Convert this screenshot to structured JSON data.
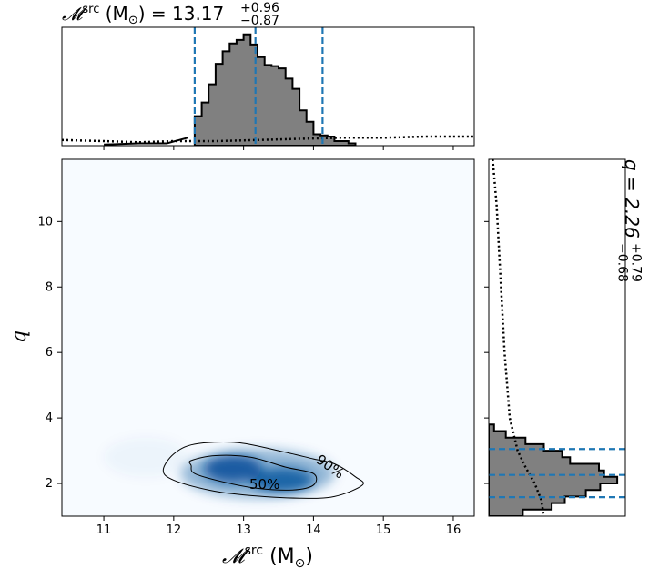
{
  "chart_data": {
    "type": "corner",
    "top_title": {
      "prefix": "𝓜",
      "sup": "src",
      "unit": " (M",
      "sun": "⊙",
      "close": ") = 13.17",
      "plus": "+0.96",
      "minus": "−0.87"
    },
    "right_title": {
      "prefix": "q = 2.26",
      "plus": "+0.79",
      "minus": "−0.68"
    },
    "xlabel": {
      "prefix": "𝓜",
      "sup": "src",
      "unit": " (M",
      "sun": "⊙",
      "close": ")"
    },
    "ylabel": "q",
    "xlim": [
      10.4,
      16.3
    ],
    "ylim": [
      1.0,
      11.9
    ],
    "xticks": [
      11,
      12,
      13,
      14,
      15,
      16
    ],
    "xtick_labels": [
      "11",
      "12",
      "13",
      "14",
      "15",
      "16"
    ],
    "yticks": [
      2,
      4,
      6,
      8,
      10
    ],
    "ytick_labels": [
      "2",
      "4",
      "6",
      "8",
      "10"
    ],
    "contour_labels": [
      "90%",
      "50%"
    ],
    "mchirp_quantiles": [
      12.3,
      13.17,
      14.13
    ],
    "q_quantiles": [
      1.58,
      2.26,
      3.05
    ],
    "mchirp_hist": {
      "edges": [
        12.3,
        12.4,
        12.5,
        12.6,
        12.7,
        12.8,
        12.9,
        13.0,
        13.1,
        13.2,
        13.3,
        13.4,
        13.5,
        13.6,
        13.7,
        13.8,
        13.9,
        14.0,
        14.1,
        14.2,
        14.3,
        14.4,
        14.5,
        14.6
      ],
      "counts": [
        0.26,
        0.38,
        0.54,
        0.72,
        0.83,
        0.9,
        0.93,
        0.98,
        0.89,
        0.78,
        0.71,
        0.7,
        0.68,
        0.59,
        0.5,
        0.31,
        0.21,
        0.1,
        0.09,
        0.08,
        0.04,
        0.04,
        0.02
      ]
    },
    "mchirp_low_tail": [
      {
        "x": 11.0,
        "y": 0.01
      },
      {
        "x": 11.5,
        "y": 0.02
      },
      {
        "x": 11.9,
        "y": 0.02
      },
      {
        "x": 12.2,
        "y": 0.07
      }
    ],
    "mchirp_prior": [
      {
        "x": 10.4,
        "y": 0.05
      },
      {
        "x": 11.0,
        "y": 0.04
      },
      {
        "x": 11.5,
        "y": 0.03
      },
      {
        "x": 12.0,
        "y": 0.04
      },
      {
        "x": 12.6,
        "y": 0.04
      },
      {
        "x": 13.2,
        "y": 0.05
      },
      {
        "x": 13.8,
        "y": 0.06
      },
      {
        "x": 14.4,
        "y": 0.07
      },
      {
        "x": 15.0,
        "y": 0.07
      },
      {
        "x": 15.6,
        "y": 0.08
      },
      {
        "x": 16.3,
        "y": 0.08
      }
    ],
    "q_hist": {
      "edges": [
        1.0,
        1.2,
        1.4,
        1.6,
        1.8,
        2.0,
        2.2,
        2.4,
        2.6,
        2.8,
        3.0,
        3.2,
        3.4,
        3.6,
        3.8
      ],
      "counts": [
        0.26,
        0.48,
        0.58,
        0.74,
        0.85,
        0.98,
        0.88,
        0.84,
        0.62,
        0.56,
        0.42,
        0.28,
        0.13,
        0.04
      ]
    },
    "q_prior": [
      {
        "q": 11.9,
        "v": 0.03
      },
      {
        "q": 10.5,
        "v": 0.06
      },
      {
        "q": 9.0,
        "v": 0.08
      },
      {
        "q": 7.5,
        "v": 0.1
      },
      {
        "q": 6.0,
        "v": 0.12
      },
      {
        "q": 5.0,
        "v": 0.14
      },
      {
        "q": 4.0,
        "v": 0.16
      },
      {
        "q": 3.0,
        "v": 0.22
      },
      {
        "q": 2.5,
        "v": 0.28
      },
      {
        "q": 2.0,
        "v": 0.35
      },
      {
        "q": 1.5,
        "v": 0.4
      },
      {
        "q": 1.0,
        "v": 0.42
      }
    ],
    "density_blobs": [
      {
        "x": 12.85,
        "y": 2.45,
        "rx": 0.42,
        "ry": 0.42,
        "weight": 1.0
      },
      {
        "x": 13.55,
        "y": 2.1,
        "rx": 0.45,
        "ry": 0.38,
        "weight": 0.9
      },
      {
        "x": 13.2,
        "y": 2.3,
        "rx": 1.1,
        "ry": 0.75,
        "weight": 0.45
      },
      {
        "x": 11.6,
        "y": 2.8,
        "rx": 0.6,
        "ry": 0.6,
        "weight": 0.05
      }
    ],
    "contour_90": [
      [
        12.0,
        2.9
      ],
      [
        12.3,
        3.2
      ],
      [
        12.9,
        3.25
      ],
      [
        13.5,
        3.0
      ],
      [
        14.0,
        2.75
      ],
      [
        14.3,
        2.6
      ],
      [
        14.6,
        2.2
      ],
      [
        14.7,
        1.95
      ],
      [
        14.3,
        1.6
      ],
      [
        13.8,
        1.55
      ],
      [
        13.0,
        1.65
      ],
      [
        12.5,
        1.8
      ],
      [
        12.0,
        2.1
      ],
      [
        11.85,
        2.4
      ]
    ],
    "contour_50": [
      [
        12.25,
        2.7
      ],
      [
        12.6,
        2.85
      ],
      [
        13.1,
        2.8
      ],
      [
        13.6,
        2.5
      ],
      [
        14.0,
        2.3
      ],
      [
        14.0,
        1.95
      ],
      [
        13.7,
        1.8
      ],
      [
        13.2,
        1.85
      ],
      [
        12.7,
        2.05
      ],
      [
        12.3,
        2.3
      ],
      [
        12.25,
        2.55
      ]
    ],
    "colors": {
      "quantile_line": "#1f77b4",
      "hist_fill": "#808080",
      "density": "#08519c",
      "density_background": "#f7fbff"
    }
  }
}
